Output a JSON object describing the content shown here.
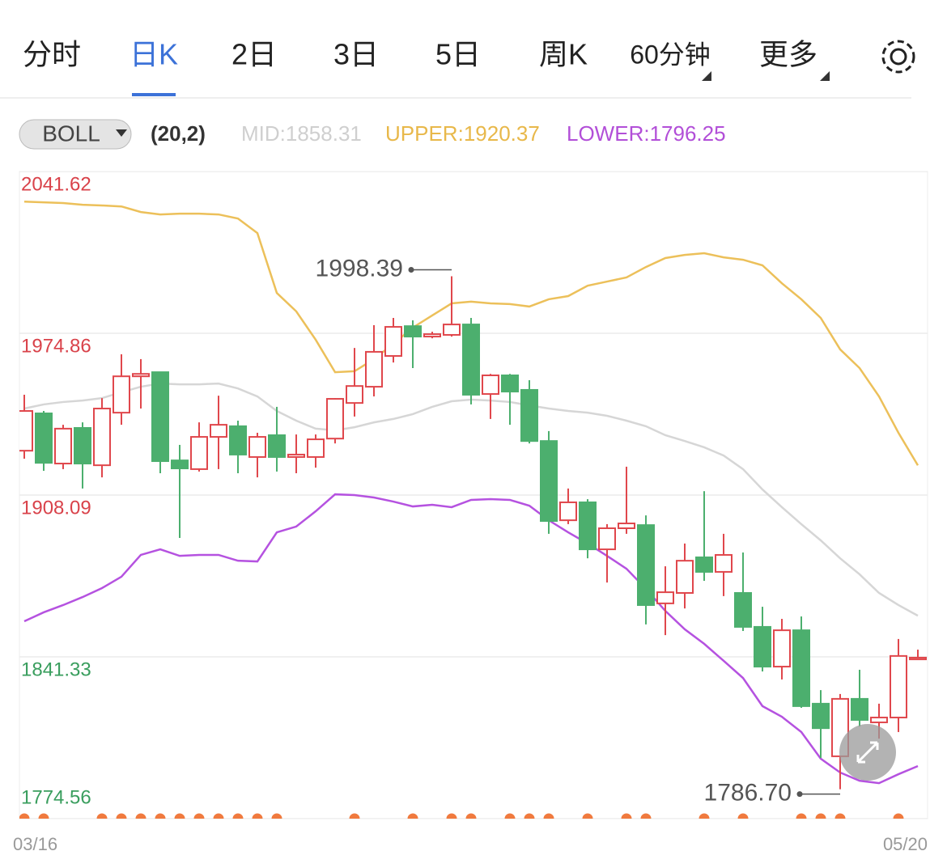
{
  "tabs": [
    "分时",
    "日K",
    "2日",
    "3日",
    "5日",
    "周K",
    "60分钟",
    "更多"
  ],
  "active_tab": 1,
  "indicator": {
    "name": "BOLL",
    "params": "(20,2)"
  },
  "chart_data": {
    "type": "candlestick",
    "categories": [
      "03/16",
      null,
      null,
      null,
      null,
      null,
      null,
      null,
      null,
      null,
      null,
      null,
      null,
      null,
      null,
      null,
      null,
      null,
      null,
      null,
      null,
      null,
      null,
      null,
      null,
      null,
      null,
      null,
      null,
      null,
      null,
      null,
      null,
      null,
      null,
      null,
      null,
      null,
      null,
      null,
      null,
      null,
      null,
      null,
      null,
      null,
      "05/20"
    ],
    "open": [
      1926.4,
      1941.8,
      1921.1,
      1935.8,
      1920.4,
      1942.1,
      1957.1,
      1958.8,
      1922.4,
      1918.8,
      1932.1,
      1936.5,
      1923.8,
      1932.8,
      1923.8,
      1923.8,
      1931.4,
      1946.1,
      1952.8,
      1965.5,
      1977.8,
      1973.5,
      1974.2,
      1978.5,
      1949.8,
      1957.5,
      1951.5,
      1930.4,
      1897.7,
      1905.1,
      1885.7,
      1894.4,
      1895.7,
      1863.4,
      1867.7,
      1882.4,
      1876.4,
      1867.7,
      1853.7,
      1837.3,
      1852.3,
      1822.0,
      1800.3,
      1824.0,
      1814.3,
      1816.3,
      1840.3
    ],
    "high": [
      1949.5,
      1942.8,
      1937.1,
      1938.1,
      1948.1,
      1966.2,
      1964.2,
      1958.8,
      1928.8,
      1938.1,
      1949.1,
      1938.8,
      1933.8,
      1944.5,
      1933.1,
      1933.1,
      1948.1,
      1968.8,
      1978.2,
      1981.2,
      1980.2,
      1975.5,
      1998.39,
      1981.2,
      1958.1,
      1958.1,
      1955.5,
      1934.5,
      1910.8,
      1906.4,
      1896.1,
      1919.8,
      1899.7,
      1878.7,
      1888.1,
      1909.7,
      1892.1,
      1884.4,
      1862.0,
      1857.0,
      1858.0,
      1827.6,
      1826.0,
      1836.0,
      1822.0,
      1848.7,
      1844.3
    ],
    "low": [
      1923.1,
      1918.1,
      1918.8,
      1910.8,
      1915.4,
      1937.1,
      1943.8,
      1917.1,
      1890.4,
      1917.8,
      1918.8,
      1917.1,
      1915.4,
      1917.8,
      1917.1,
      1919.4,
      1929.4,
      1940.5,
      1948.8,
      1962.8,
      1960.5,
      1972.8,
      1973.5,
      1945.5,
      1939.5,
      1937.1,
      1929.4,
      1892.1,
      1896.1,
      1882.0,
      1872.0,
      1892.1,
      1854.7,
      1850.3,
      1861.3,
      1872.7,
      1866.4,
      1852.0,
      1835.3,
      1832.0,
      1820.3,
      1799.6,
      1786.7,
      1812.6,
      1807.6,
      1810.3,
      1840.3
    ],
    "close": [
      1942.8,
      1921.4,
      1935.5,
      1921.1,
      1943.8,
      1957.1,
      1958.1,
      1922.1,
      1919.1,
      1932.1,
      1937.1,
      1924.8,
      1932.1,
      1923.8,
      1924.8,
      1931.1,
      1947.8,
      1953.1,
      1967.2,
      1977.5,
      1973.5,
      1974.5,
      1978.5,
      1949.5,
      1957.5,
      1950.8,
      1930.4,
      1897.4,
      1905.1,
      1885.7,
      1894.4,
      1896.4,
      1862.7,
      1868.0,
      1881.0,
      1876.4,
      1883.4,
      1853.7,
      1837.3,
      1852.3,
      1821.0,
      1811.9,
      1824.0,
      1815.3,
      1816.3,
      1841.7,
      1841.0
    ],
    "series": [
      {
        "name": "MID:",
        "color": "#d6d6d6",
        "values": [
          1943.8,
          1945.5,
          1946.5,
          1947.1,
          1948.1,
          1950.5,
          1952.8,
          1954.1,
          1953.8,
          1953.8,
          1954.1,
          1952.1,
          1948.8,
          1942.8,
          1938.8,
          1935.5,
          1934.8,
          1936.1,
          1938.1,
          1939.5,
          1941.5,
          1944.5,
          1946.8,
          1947.5,
          1947.1,
          1946.5,
          1945.1,
          1943.8,
          1942.8,
          1942.1,
          1940.8,
          1938.8,
          1936.5,
          1932.8,
          1930.4,
          1927.8,
          1924.4,
          1918.8,
          1910.4,
          1903.1,
          1896.1,
          1889.4,
          1882.0,
          1875.4,
          1867.7,
          1862.7,
          1858.31
        ]
      },
      {
        "name": "UPPER:",
        "color": "#ecc05a",
        "values": [
          2029.2,
          2028.9,
          2028.6,
          2027.9,
          2027.6,
          2027.2,
          2024.9,
          2023.9,
          2024.2,
          2024.2,
          2023.9,
          2022.2,
          2016.2,
          1991.5,
          1983.9,
          1972.2,
          1958.8,
          1959.2,
          1964.2,
          1970.5,
          1977.2,
          1982.2,
          1987.2,
          1987.9,
          1987.2,
          1986.9,
          1985.9,
          1988.9,
          1990.2,
          1994.5,
          1996.2,
          1997.9,
          2002.2,
          2005.9,
          2007.2,
          2007.9,
          2006.2,
          2005.2,
          2002.9,
          1995.5,
          1988.9,
          1981.2,
          1968.2,
          1960.5,
          1948.8,
          1933.8,
          1920.37
        ]
      },
      {
        "name": "LOWER:",
        "color": "#b552e0",
        "values": [
          1856.0,
          1859.7,
          1862.7,
          1866.0,
          1869.7,
          1874.4,
          1883.4,
          1885.7,
          1883.0,
          1883.4,
          1883.4,
          1881.0,
          1880.7,
          1892.7,
          1895.1,
          1901.4,
          1908.4,
          1908.1,
          1907.1,
          1905.4,
          1903.4,
          1904.1,
          1903.1,
          1906.1,
          1906.4,
          1906.1,
          1903.7,
          1897.7,
          1892.7,
          1888.1,
          1883.0,
          1877.7,
          1869.4,
          1860.3,
          1852.7,
          1846.7,
          1839.7,
          1832.6,
          1821.0,
          1816.6,
          1810.3,
          1799.3,
          1793.6,
          1790.2,
          1789.2,
          1792.9,
          1796.25
        ]
      }
    ],
    "up_color": "#e0474c",
    "down_color": "#4caf6e",
    "annotations": [
      "1998.39",
      "1786.70"
    ],
    "signals": [
      true,
      true,
      false,
      false,
      true,
      true,
      true,
      true,
      true,
      true,
      true,
      true,
      true,
      true,
      false,
      false,
      false,
      true,
      false,
      false,
      true,
      false,
      true,
      true,
      false,
      true,
      true,
      true,
      false,
      true,
      false,
      true,
      true,
      false,
      false,
      true,
      false,
      true,
      false,
      false,
      true,
      true,
      true,
      false,
      false,
      true,
      false
    ],
    "signal_color": "#f07a3e",
    "ylim": [
      1774.56,
      2041.62
    ],
    "yticks": [
      {
        "value": 1774.56,
        "label": "1774.56"
      },
      {
        "value": 1841.33,
        "label": "1841.33"
      },
      {
        "value": 1908.09,
        "label": "1908.09"
      },
      {
        "value": 1974.86,
        "label": "1974.86"
      },
      {
        "value": 2041.62,
        "label": "2041.62"
      }
    ],
    "grid": true
  }
}
